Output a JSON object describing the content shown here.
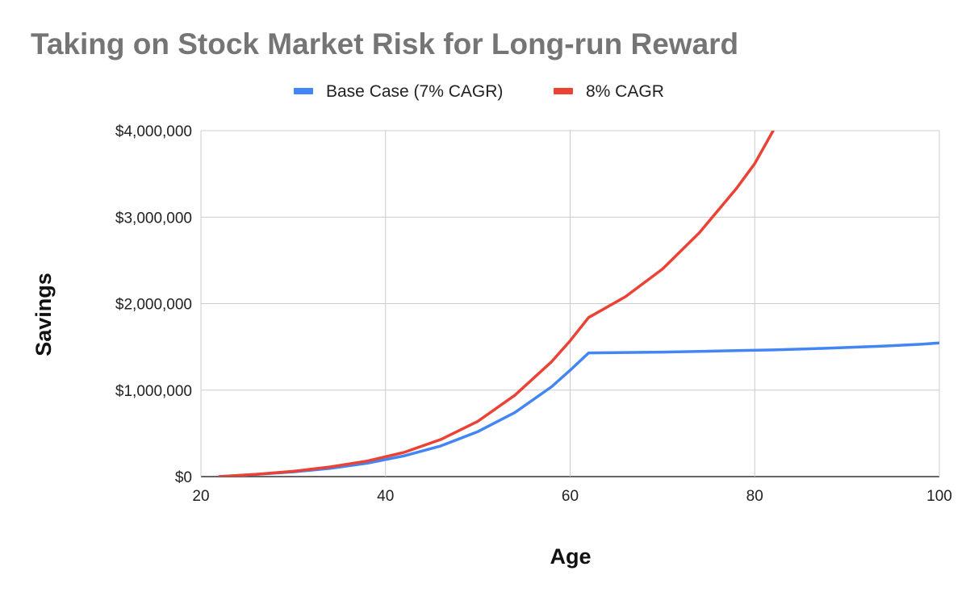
{
  "chart_data": {
    "type": "line",
    "title": "Taking on Stock Market Risk for Long-run Reward",
    "xlabel": "Age",
    "ylabel": "Savings",
    "xlim": [
      20,
      100
    ],
    "ylim": [
      0,
      4000000
    ],
    "x_ticks": [
      20,
      40,
      60,
      80,
      100
    ],
    "y_ticks": [
      0,
      1000000,
      2000000,
      3000000,
      4000000
    ],
    "y_tick_labels": [
      "$0",
      "$1,000,000",
      "$2,000,000",
      "$3,000,000",
      "$4,000,000"
    ],
    "x_tick_labels": [
      "20",
      "40",
      "60",
      "80",
      "100"
    ],
    "grid": true,
    "legend_position": "top",
    "series": [
      {
        "name": "Base Case (7% CAGR)",
        "color": "#4285f4",
        "x": [
          22,
          26,
          30,
          34,
          38,
          42,
          46,
          50,
          54,
          58,
          60,
          62,
          66,
          70,
          74,
          78,
          82,
          86,
          90,
          94,
          98,
          100
        ],
        "y": [
          0,
          25000,
          55000,
          95000,
          155000,
          240000,
          355000,
          520000,
          740000,
          1040000,
          1230000,
          1430000,
          1435000,
          1440000,
          1448000,
          1456000,
          1465000,
          1478000,
          1493000,
          1510000,
          1530000,
          1545000
        ]
      },
      {
        "name": "8% CAGR",
        "color": "#ea4335",
        "x": [
          22,
          26,
          30,
          34,
          38,
          42,
          46,
          50,
          54,
          58,
          60,
          62,
          64,
          66,
          70,
          74,
          78,
          80,
          82
        ],
        "y": [
          0,
          27000,
          62000,
          112000,
          180000,
          280000,
          430000,
          640000,
          940000,
          1330000,
          1570000,
          1840000,
          1960000,
          2080000,
          2400000,
          2820000,
          3330000,
          3620000,
          4000000
        ]
      }
    ]
  }
}
